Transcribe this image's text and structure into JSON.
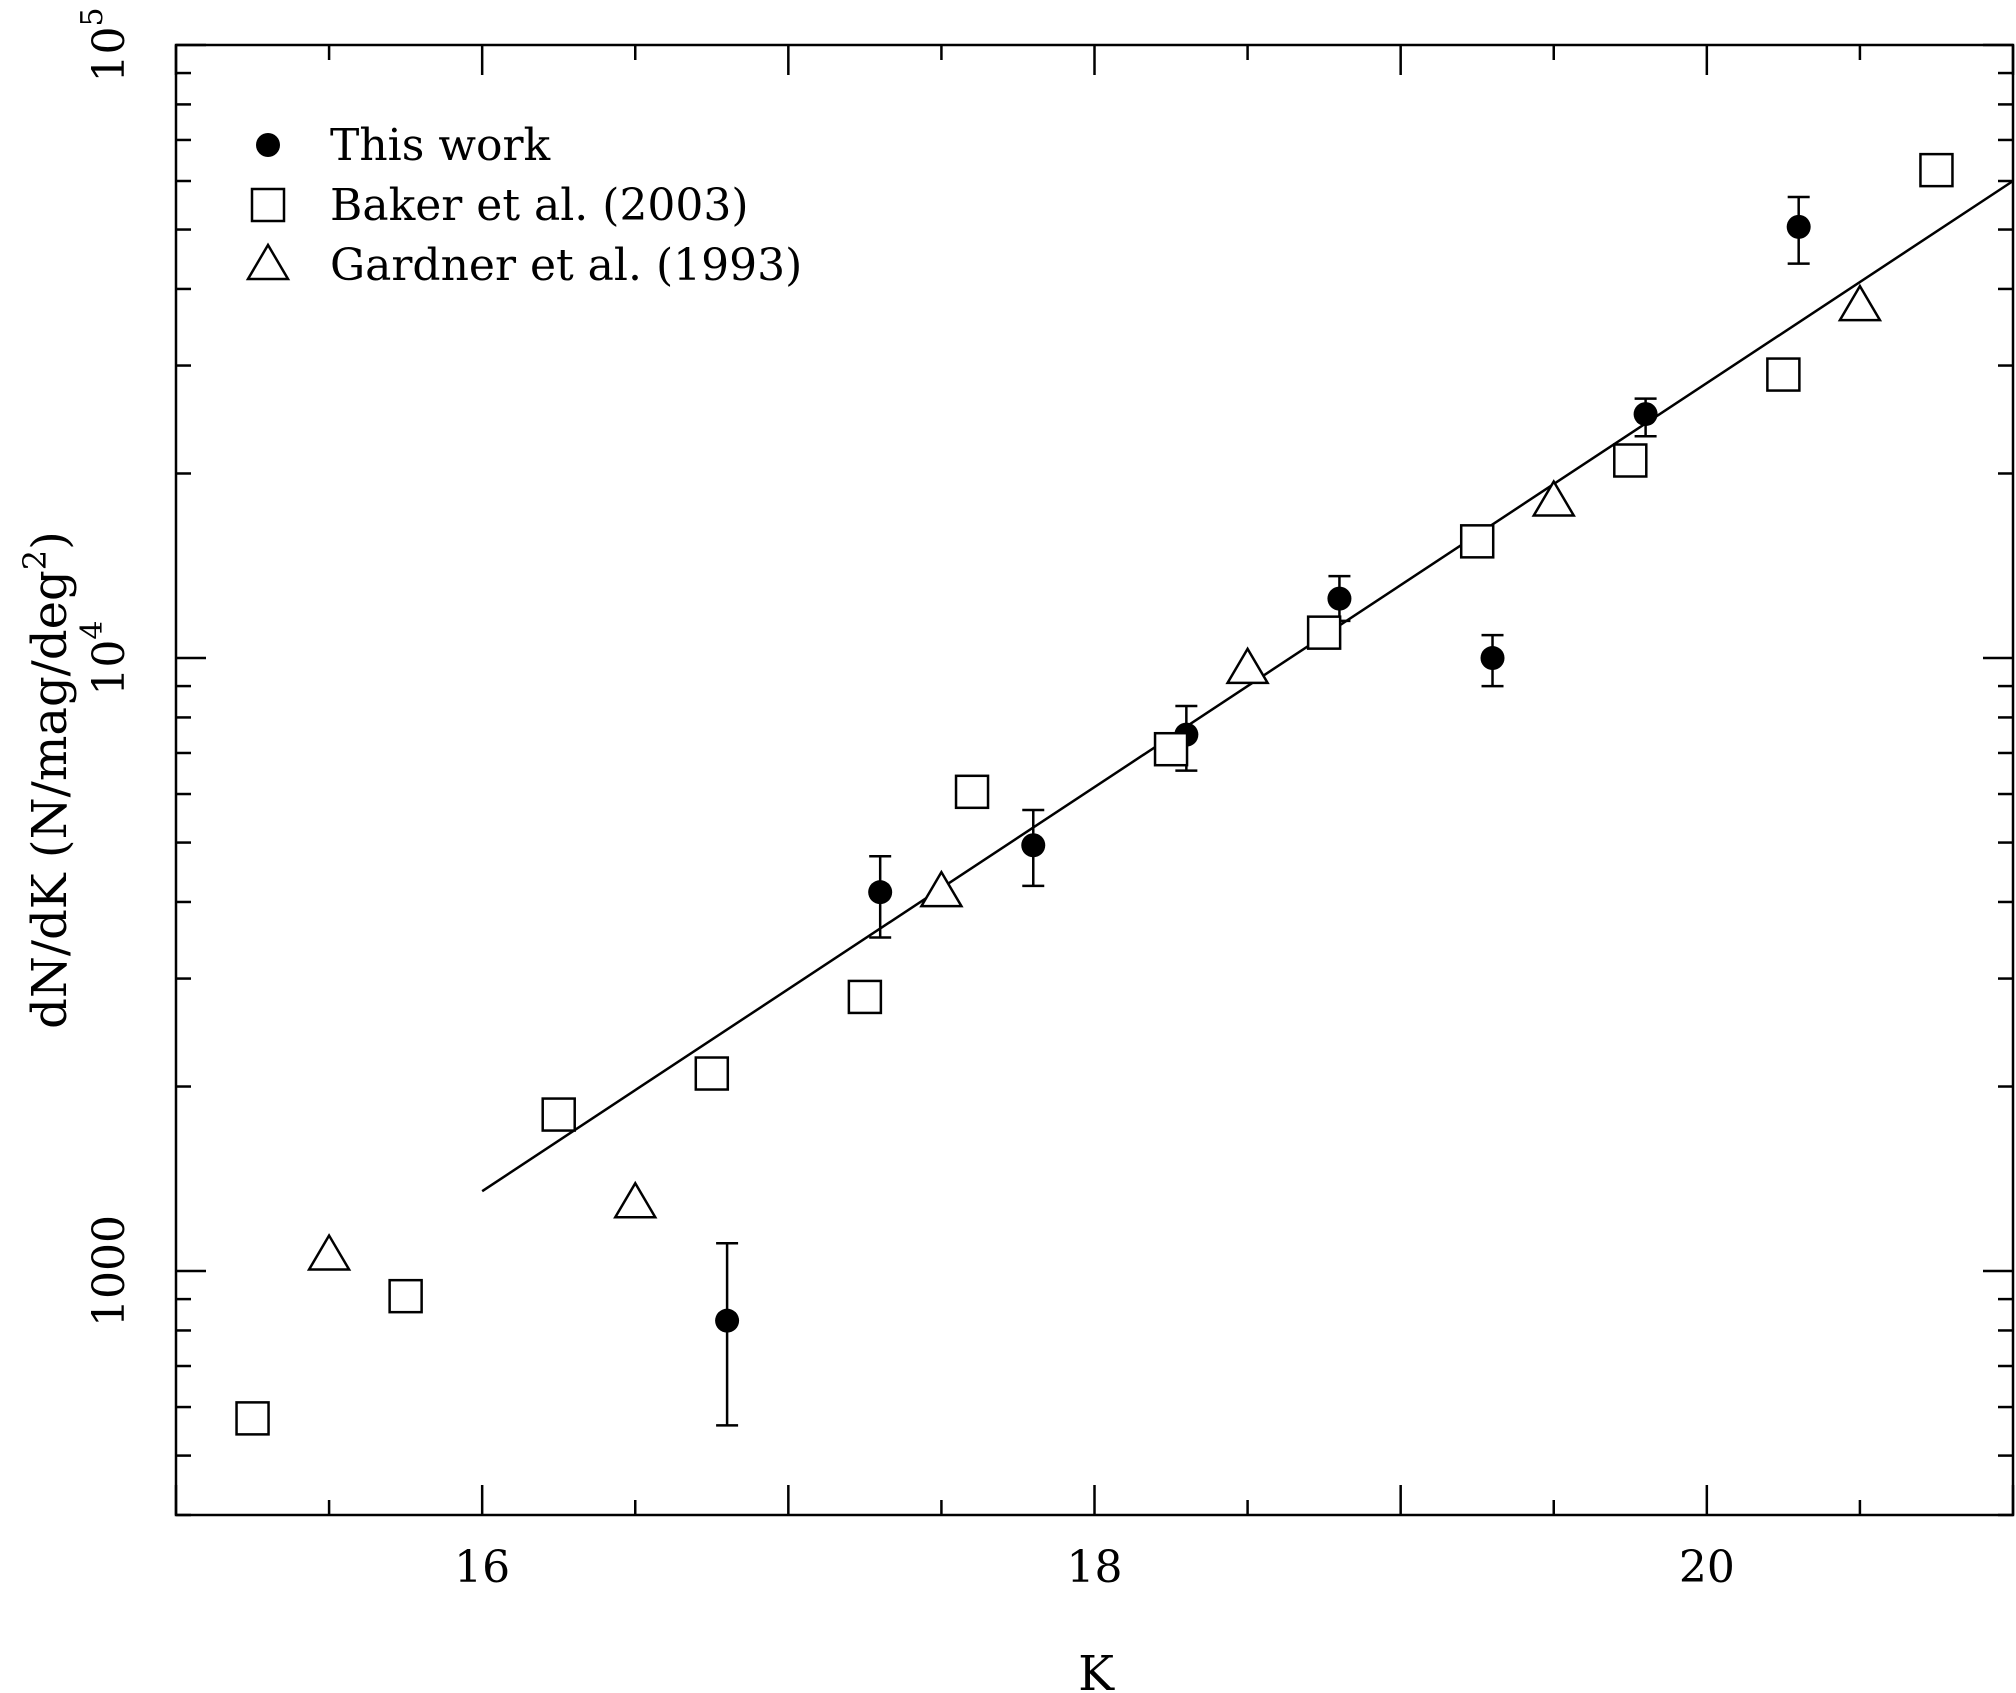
{
  "chart_data": {
    "type": "scatter",
    "xlabel": "K",
    "ylabel_main": "dN/dK (N/mag/deg",
    "ylabel_sup": "2",
    "ylabel_close": ")",
    "xlim": [
      15,
      21
    ],
    "ylim": [
      400,
      100000
    ],
    "y_scale": "log",
    "grid": false,
    "legend_position": "top-left",
    "x_ticks": [
      {
        "value": 16,
        "label": "16"
      },
      {
        "value": 18,
        "label": "18"
      },
      {
        "value": 20,
        "label": "20"
      }
    ],
    "y_ticks": [
      {
        "value": 1000,
        "base": "1000",
        "exp": ""
      },
      {
        "value": 10000,
        "base": "10",
        "exp": "4"
      },
      {
        "value": 100000,
        "base": "10",
        "exp": "5"
      }
    ],
    "series": [
      {
        "name": "This work",
        "marker": "filled-circle",
        "points": [
          {
            "x": 16.8,
            "y": 830,
            "ylo": 560,
            "yhi": 1110
          },
          {
            "x": 17.3,
            "y": 4150,
            "ylo": 3500,
            "yhi": 4750
          },
          {
            "x": 17.8,
            "y": 4950,
            "ylo": 4250,
            "yhi": 5650
          },
          {
            "x": 18.3,
            "y": 7500,
            "ylo": 6550,
            "yhi": 8350
          },
          {
            "x": 18.8,
            "y": 12500,
            "ylo": 11500,
            "yhi": 13600
          },
          {
            "x": 19.3,
            "y": 10000,
            "ylo": 9000,
            "yhi": 10900
          },
          {
            "x": 19.8,
            "y": 25000,
            "ylo": 23000,
            "yhi": 26500
          },
          {
            "x": 20.3,
            "y": 50500,
            "ylo": 44000,
            "yhi": 56500
          }
        ]
      },
      {
        "name": "Baker et al. (2003)",
        "marker": "open-square",
        "points": [
          {
            "x": 15.25,
            "y": 575
          },
          {
            "x": 15.75,
            "y": 910
          },
          {
            "x": 16.25,
            "y": 1800
          },
          {
            "x": 16.75,
            "y": 2100
          },
          {
            "x": 17.25,
            "y": 2800
          },
          {
            "x": 17.6,
            "y": 6050
          },
          {
            "x": 18.25,
            "y": 7100
          },
          {
            "x": 18.75,
            "y": 11000
          },
          {
            "x": 19.25,
            "y": 15500
          },
          {
            "x": 19.75,
            "y": 21000
          },
          {
            "x": 20.25,
            "y": 29000
          },
          {
            "x": 20.75,
            "y": 62500
          }
        ]
      },
      {
        "name": "Gardner et al. (1993)",
        "marker": "open-triangle",
        "points": [
          {
            "x": 15.5,
            "y": 1060
          },
          {
            "x": 16.5,
            "y": 1290
          },
          {
            "x": 17.5,
            "y": 4150
          },
          {
            "x": 18.5,
            "y": 9600
          },
          {
            "x": 19.5,
            "y": 18000
          },
          {
            "x": 20.5,
            "y": 37500
          }
        ]
      }
    ],
    "fit_line": {
      "x": [
        16,
        21
      ],
      "y": [
        1350,
        60000
      ]
    }
  }
}
